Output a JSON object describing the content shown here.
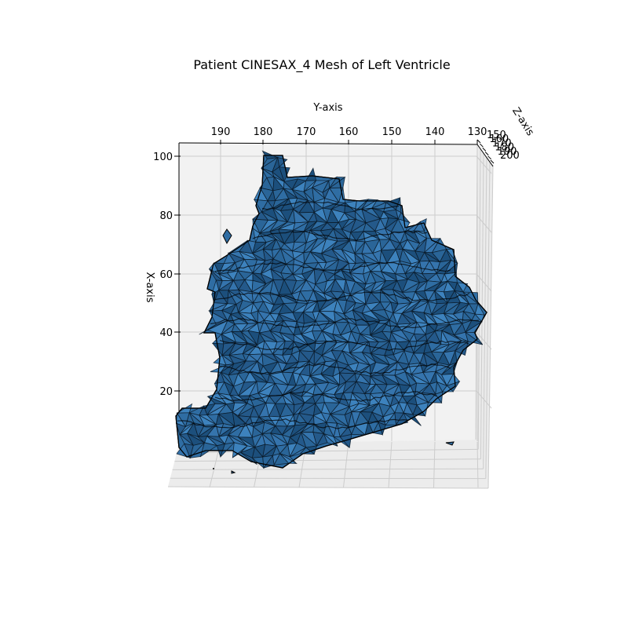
{
  "chart_data": {
    "type": "3d-surface-mesh",
    "title": "Patient CINESAX_4 Mesh of Left Ventricle",
    "xlabel": "X-axis",
    "ylabel": "Y-axis",
    "zlabel": "Z-axis",
    "x_ticks": [
      "20",
      "40",
      "60",
      "80",
      "100"
    ],
    "y_ticks": [
      "190",
      "180",
      "170",
      "160",
      "150",
      "140",
      "130"
    ],
    "z_ticks": [
      "150",
      "160",
      "170",
      "180",
      "190",
      "200"
    ],
    "xlim": [
      0,
      100
    ],
    "ylim": [
      130,
      195
    ],
    "zlim": [
      150,
      200
    ],
    "grid": true,
    "colors": {
      "face": "#2f6da3",
      "face_light": "#3d82bd",
      "face_dark": "#1c4f7c",
      "edge": "#000000",
      "pane": "#f2f2f2",
      "grid": "#cccccc"
    }
  }
}
